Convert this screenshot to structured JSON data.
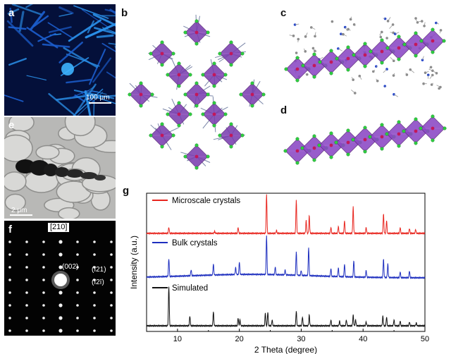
{
  "panels": {
    "a": {
      "label": "a",
      "scale_text": "100 μm"
    },
    "b": {
      "label": "b"
    },
    "c": {
      "label": "c"
    },
    "d": {
      "label": "d"
    },
    "e": {
      "label": "e",
      "scale_text": "2 μm"
    },
    "f": {
      "label": "f",
      "zone_axis": "[210]",
      "spot_002": "(002)",
      "spot_121": "(ī21)",
      "spot_121b": "(ī2ī)"
    },
    "g": {
      "label": "g"
    }
  },
  "chart_data": {
    "type": "line",
    "xlabel": "2 Theta (degree)",
    "ylabel": "Intensity (a.u.)",
    "xlim": [
      5,
      50
    ],
    "xticks": [
      10,
      20,
      30,
      40,
      50
    ],
    "legend_placement": "inline-left",
    "series": [
      {
        "name": "Microscale crystals",
        "color": "#e8261f",
        "peaks": [
          [
            8.6,
            0.6
          ],
          [
            16.0,
            0.2
          ],
          [
            19.8,
            0.6
          ],
          [
            24.4,
            4.0
          ],
          [
            26.0,
            0.3
          ],
          [
            29.2,
            3.4
          ],
          [
            30.8,
            1.3
          ],
          [
            31.3,
            1.8
          ],
          [
            34.8,
            0.6
          ],
          [
            36.0,
            0.7
          ],
          [
            37.0,
            1.3
          ],
          [
            38.4,
            2.7
          ],
          [
            40.5,
            0.6
          ],
          [
            43.3,
            2.0
          ],
          [
            43.8,
            1.3
          ],
          [
            46.0,
            0.6
          ],
          [
            47.5,
            0.5
          ],
          [
            48.5,
            0.4
          ]
        ]
      },
      {
        "name": "Bulk crystals",
        "color": "#1e2fbf",
        "peaks": [
          [
            8.6,
            1.8
          ],
          [
            12.2,
            0.6
          ],
          [
            15.8,
            1.1
          ],
          [
            19.4,
            0.7
          ],
          [
            20.0,
            1.3
          ],
          [
            24.4,
            4.0
          ],
          [
            25.8,
            0.8
          ],
          [
            27.4,
            0.5
          ],
          [
            29.2,
            2.4
          ],
          [
            30.0,
            0.5
          ],
          [
            31.2,
            2.9
          ],
          [
            34.8,
            0.8
          ],
          [
            36.0,
            0.9
          ],
          [
            37.0,
            1.3
          ],
          [
            38.5,
            1.7
          ],
          [
            40.5,
            0.7
          ],
          [
            43.3,
            1.9
          ],
          [
            44.0,
            1.4
          ],
          [
            46.0,
            0.6
          ],
          [
            47.5,
            0.7
          ]
        ]
      },
      {
        "name": "Simulated",
        "color": "#111111",
        "peaks": [
          [
            8.6,
            4.0
          ],
          [
            12.0,
            1.0
          ],
          [
            15.8,
            1.4
          ],
          [
            19.8,
            0.8
          ],
          [
            20.1,
            0.6
          ],
          [
            24.2,
            1.3
          ],
          [
            24.6,
            1.4
          ],
          [
            25.3,
            0.6
          ],
          [
            29.2,
            1.5
          ],
          [
            30.2,
            0.9
          ],
          [
            31.3,
            1.1
          ],
          [
            34.8,
            0.6
          ],
          [
            36.2,
            0.5
          ],
          [
            37.3,
            0.6
          ],
          [
            38.4,
            1.1
          ],
          [
            38.8,
            0.6
          ],
          [
            40.5,
            0.4
          ],
          [
            43.2,
            1.0
          ],
          [
            43.8,
            0.9
          ],
          [
            45.0,
            0.6
          ],
          [
            46.0,
            0.5
          ],
          [
            47.5,
            0.4
          ],
          [
            48.6,
            0.3
          ]
        ]
      }
    ]
  }
}
